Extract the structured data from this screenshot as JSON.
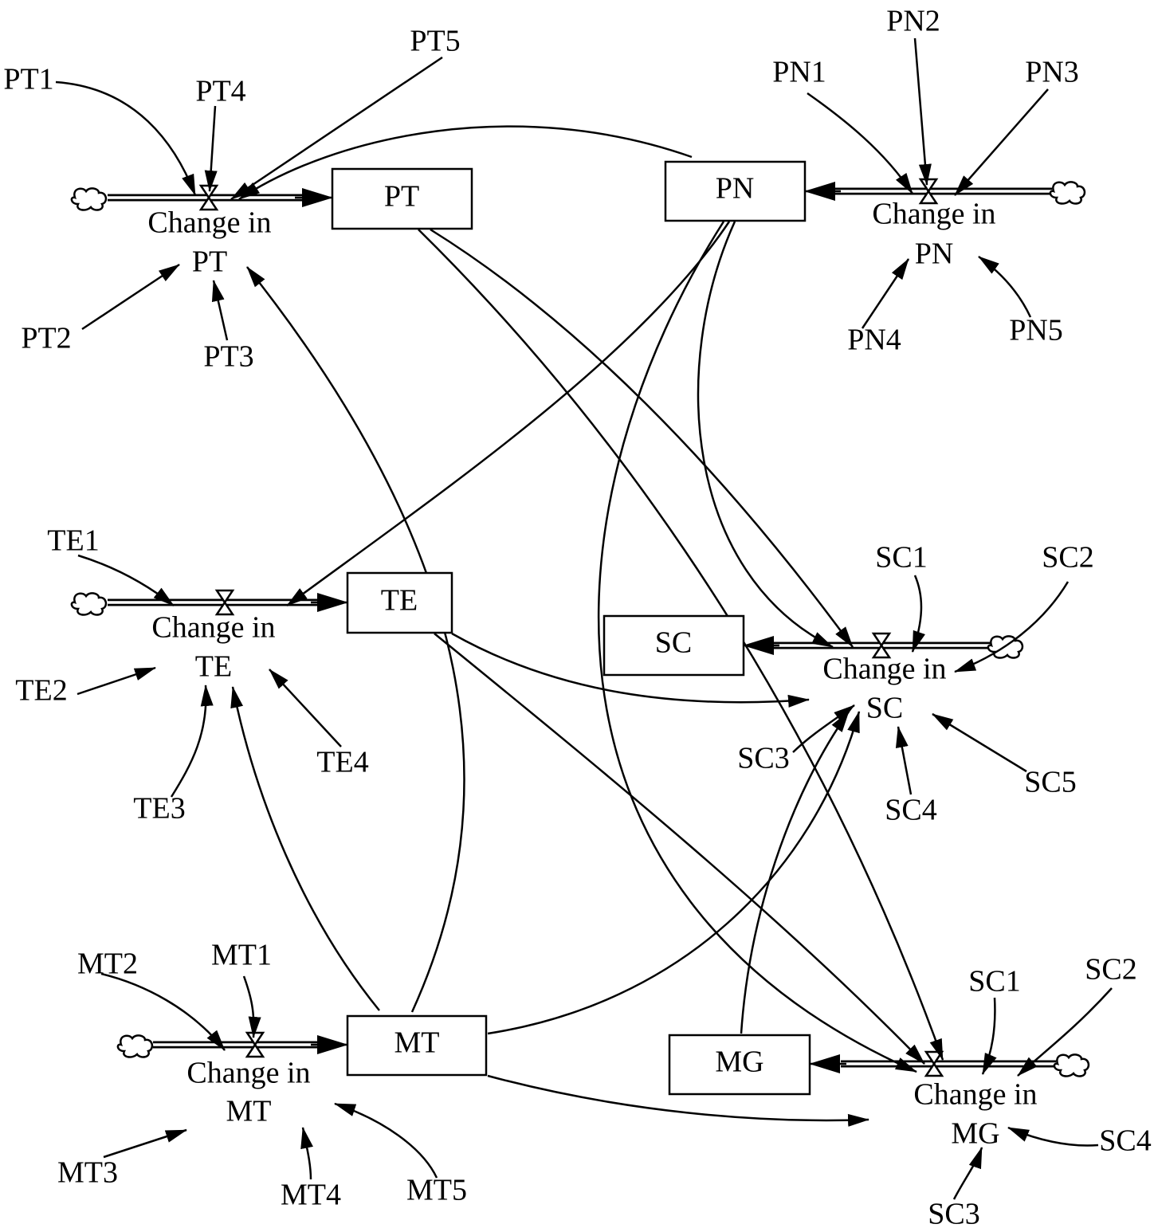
{
  "stocks": {
    "PT": "PT",
    "PN": "PN",
    "TE": "TE",
    "SC": "SC",
    "MT": "MT",
    "MG": "MG"
  },
  "flows": {
    "PT": {
      "line1": "Change in",
      "line2": "PT"
    },
    "PN": {
      "line1": "Change in",
      "line2": "PN"
    },
    "TE": {
      "line1": "Change in",
      "line2": "TE"
    },
    "SC": {
      "line1": "Change in",
      "line2": "SC"
    },
    "MT": {
      "line1": "Change in",
      "line2": "MT"
    },
    "MG": {
      "line1": "Change in",
      "line2": "MG"
    }
  },
  "aux": {
    "PT": [
      "PT1",
      "PT2",
      "PT3",
      "PT4",
      "PT5"
    ],
    "PN": [
      "PN1",
      "PN2",
      "PN3",
      "PN4",
      "PN5"
    ],
    "TE": [
      "TE1",
      "TE2",
      "TE3",
      "TE4"
    ],
    "SC": [
      "SC1",
      "SC2",
      "SC3",
      "SC4",
      "SC5"
    ],
    "MT": [
      "MT1",
      "MT2",
      "MT3",
      "MT4",
      "MT5"
    ],
    "MG": [
      "SC1",
      "SC2",
      "SC3",
      "SC4"
    ]
  }
}
